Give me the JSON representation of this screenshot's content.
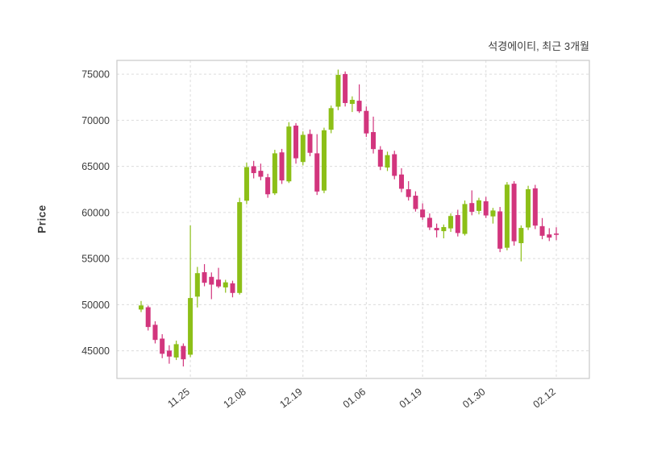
{
  "chart_data": {
    "type": "candlestick",
    "title": "석경에이티, 최근 3개월",
    "ylabel": "Price",
    "ylim": [
      42000,
      76500
    ],
    "yticks": [
      45000,
      50000,
      55000,
      60000,
      65000,
      70000,
      75000
    ],
    "xtick_labels": [
      "11.25",
      "12.08",
      "12.19",
      "01.06",
      "01.19",
      "01.30",
      "02.12"
    ],
    "xtick_indices": [
      8,
      16,
      24,
      33,
      41,
      50,
      60
    ],
    "up_color": "#8cbf17",
    "down_color": "#d2357d",
    "grid": {
      "dashed": true,
      "color": "#dcdcdc",
      "border_color": "#c9c9c9"
    },
    "legend_position": "none",
    "candles_format": "[open, high, low, close]",
    "candles": [
      [
        49500,
        50400,
        49200,
        49900
      ],
      [
        49700,
        49900,
        47200,
        47600
      ],
      [
        47800,
        48200,
        45800,
        46200
      ],
      [
        46300,
        46800,
        44200,
        44700
      ],
      [
        45000,
        45600,
        43600,
        44400
      ],
      [
        44300,
        46100,
        44000,
        45700
      ],
      [
        45500,
        45800,
        43300,
        44100
      ],
      [
        44600,
        58600,
        44300,
        50700
      ],
      [
        50900,
        54100,
        49700,
        53400
      ],
      [
        53500,
        54400,
        52000,
        52400
      ],
      [
        53000,
        53500,
        50600,
        52200
      ],
      [
        52700,
        54000,
        51800,
        52000
      ],
      [
        51900,
        52700,
        51300,
        52400
      ],
      [
        52300,
        52600,
        50800,
        51300
      ],
      [
        51300,
        61600,
        51100,
        61100
      ],
      [
        61300,
        65400,
        60900,
        64900
      ],
      [
        65000,
        65600,
        63700,
        64300
      ],
      [
        64500,
        65300,
        63500,
        63900
      ],
      [
        63800,
        64200,
        61600,
        62000
      ],
      [
        62100,
        66800,
        61900,
        66400
      ],
      [
        66500,
        66900,
        63100,
        63500
      ],
      [
        63400,
        69800,
        63200,
        69300
      ],
      [
        69400,
        69700,
        65300,
        65900
      ],
      [
        65500,
        68800,
        65100,
        68400
      ],
      [
        68500,
        69000,
        66100,
        66500
      ],
      [
        66400,
        68500,
        61900,
        62300
      ],
      [
        62400,
        69200,
        62100,
        68900
      ],
      [
        69000,
        71600,
        68600,
        71300
      ],
      [
        71500,
        75500,
        71100,
        74900
      ],
      [
        75000,
        75300,
        71500,
        71900
      ],
      [
        71800,
        72600,
        70900,
        72200
      ],
      [
        72100,
        73900,
        70800,
        71000
      ],
      [
        71000,
        71500,
        68200,
        68600
      ],
      [
        68700,
        70400,
        66400,
        66900
      ],
      [
        66800,
        67200,
        64600,
        65000
      ],
      [
        64900,
        66600,
        64500,
        66200
      ],
      [
        66300,
        66700,
        63600,
        64000
      ],
      [
        64100,
        64800,
        62200,
        62600
      ],
      [
        62500,
        63400,
        61300,
        61700
      ],
      [
        61800,
        62300,
        60100,
        60400
      ],
      [
        60300,
        61000,
        59200,
        59500
      ],
      [
        59400,
        59900,
        58100,
        58400
      ],
      [
        58300,
        58800,
        57300,
        58100
      ],
      [
        58000,
        58700,
        57200,
        58400
      ],
      [
        58300,
        59900,
        57900,
        59600
      ],
      [
        59700,
        60300,
        57400,
        57800
      ],
      [
        57700,
        61300,
        57500,
        60900
      ],
      [
        61000,
        62400,
        59700,
        60100
      ],
      [
        60200,
        61600,
        59800,
        61300
      ],
      [
        61200,
        61700,
        59400,
        59700
      ],
      [
        59600,
        60500,
        58800,
        60200
      ],
      [
        60100,
        60600,
        55700,
        56100
      ],
      [
        56200,
        63300,
        55900,
        63000
      ],
      [
        63100,
        63400,
        56400,
        56900
      ],
      [
        56700,
        58600,
        54700,
        58300
      ],
      [
        58400,
        62900,
        58100,
        62500
      ],
      [
        62600,
        63000,
        58200,
        58600
      ],
      [
        58500,
        59400,
        57100,
        57500
      ],
      [
        57600,
        58300,
        56900,
        57300
      ],
      [
        57700,
        58400,
        57000,
        57600
      ]
    ]
  }
}
